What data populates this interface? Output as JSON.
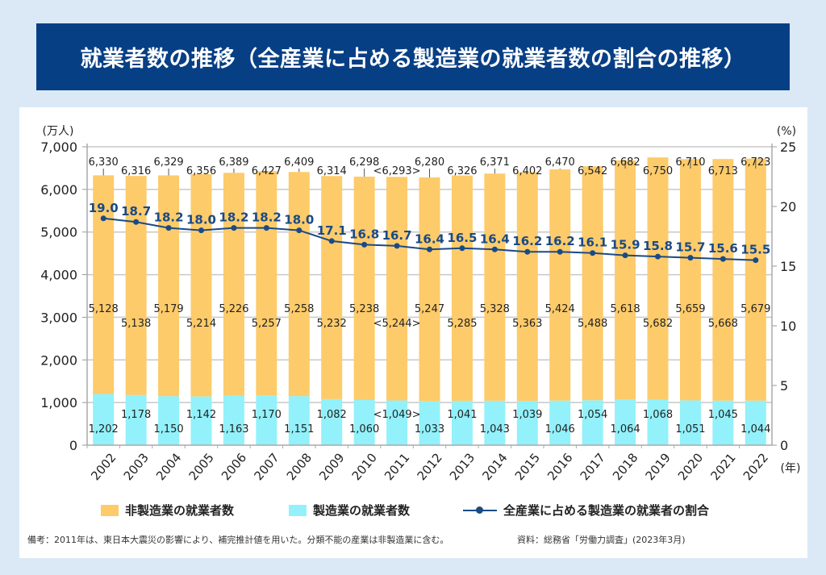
{
  "title": "就業者数の推移（全産業に占める製造業の就業者数の割合の推移）",
  "legend": {
    "non_manufacturing": "非製造業の就業者数",
    "manufacturing": "製造業の就業者数",
    "ratio": "全産業に占める製造業の就業者の割合"
  },
  "note": "備考：2011年は、東日本大震災の影響により、補完推計値を用いた。分類不能の産業は非製造業に含む。",
  "source": "資料：総務省「労働力調査」(2023年3月)",
  "colors": {
    "non_manufacturing": "#fdcb6a",
    "manufacturing": "#92f1fa",
    "ratio": "#1a4a86",
    "title_bg": "#073f85",
    "page_bg": "#dbe9f6"
  },
  "chart_data": {
    "type": "bar",
    "stacked": true,
    "title": "就業者数の推移（全産業に占める製造業の就業者数の割合の推移）",
    "xlabel": "(年)",
    "ylabel": "(万人)",
    "y2label": "(%)",
    "ylim": [
      0,
      7000
    ],
    "y2lim": [
      0,
      25
    ],
    "yticks": [
      0,
      1000,
      2000,
      3000,
      4000,
      5000,
      6000,
      7000
    ],
    "ytick_labels": [
      "0",
      "1,000",
      "2,000",
      "3,000",
      "4,000",
      "5,000",
      "6,000",
      "7,000"
    ],
    "y2ticks": [
      0,
      5,
      10,
      15,
      20,
      25
    ],
    "y2tick_labels": [
      "0",
      "5",
      "10",
      "15",
      "20",
      "25"
    ],
    "grid": true,
    "legend_position": "bottom",
    "categories": [
      "2002",
      "2003",
      "2004",
      "2005",
      "2006",
      "2007",
      "2008",
      "2009",
      "2010",
      "2011",
      "2012",
      "2013",
      "2014",
      "2015",
      "2016",
      "2017",
      "2018",
      "2019",
      "2020",
      "2021",
      "2022"
    ],
    "series": [
      {
        "name": "製造業の就業者数",
        "axis": "left",
        "type": "bar",
        "values": [
          1202,
          1178,
          1150,
          1142,
          1163,
          1170,
          1151,
          1082,
          1060,
          1049,
          1033,
          1041,
          1043,
          1039,
          1046,
          1054,
          1064,
          1068,
          1051,
          1045,
          1044
        ],
        "labels": [
          "1,202",
          "1,178",
          "1,150",
          "1,142",
          "1,163",
          "1,170",
          "1,151",
          "1,082",
          "1,060",
          "<1,049>",
          "1,033",
          "1,041",
          "1,043",
          "1,039",
          "1,046",
          "1,054",
          "1,064",
          "1,068",
          "1,051",
          "1,045",
          "1,044"
        ]
      },
      {
        "name": "非製造業の就業者数",
        "axis": "left",
        "type": "bar",
        "values": [
          5128,
          5138,
          5179,
          5214,
          5226,
          5257,
          5258,
          5232,
          5238,
          5244,
          5247,
          5285,
          5328,
          5363,
          5424,
          5488,
          5618,
          5682,
          5659,
          5668,
          5679
        ],
        "labels": [
          "5,128",
          "5,138",
          "5,179",
          "5,214",
          "5,226",
          "5,257",
          "5,258",
          "5,232",
          "5,238",
          "<5,244>",
          "5,247",
          "5,285",
          "5,328",
          "5,363",
          "5,424",
          "5,488",
          "5,618",
          "5,682",
          "5,659",
          "5,668",
          "5,679"
        ]
      },
      {
        "name": "全産業に占める製造業の就業者の割合",
        "axis": "right",
        "type": "line",
        "values": [
          19.0,
          18.7,
          18.2,
          18.0,
          18.2,
          18.2,
          18.0,
          17.1,
          16.8,
          16.7,
          16.4,
          16.5,
          16.4,
          16.2,
          16.2,
          16.1,
          15.9,
          15.8,
          15.7,
          15.6,
          15.5
        ],
        "labels": [
          "19.0",
          "18.7",
          "18.2",
          "18.0",
          "18.2",
          "18.2",
          "18.0",
          "17.1",
          "16.8",
          "16.7",
          "16.4",
          "16.5",
          "16.4",
          "16.2",
          "16.2",
          "16.1",
          "15.9",
          "15.8",
          "15.7",
          "15.6",
          "15.5"
        ]
      }
    ],
    "totals": {
      "values": [
        6330,
        6316,
        6329,
        6356,
        6389,
        6427,
        6409,
        6314,
        6298,
        6293,
        6280,
        6326,
        6371,
        6402,
        6470,
        6542,
        6682,
        6750,
        6710,
        6713,
        6723
      ],
      "labels": [
        "6,330",
        "6,316",
        "6,329",
        "6,356",
        "6,389",
        "6,427",
        "6,409",
        "6,314",
        "6,298",
        "<6,293>",
        "6,280",
        "6,326",
        "6,371",
        "6,402",
        "6,470",
        "6,542",
        "6,682",
        "6,750",
        "6,710",
        "6,713",
        "6,723"
      ]
    }
  }
}
